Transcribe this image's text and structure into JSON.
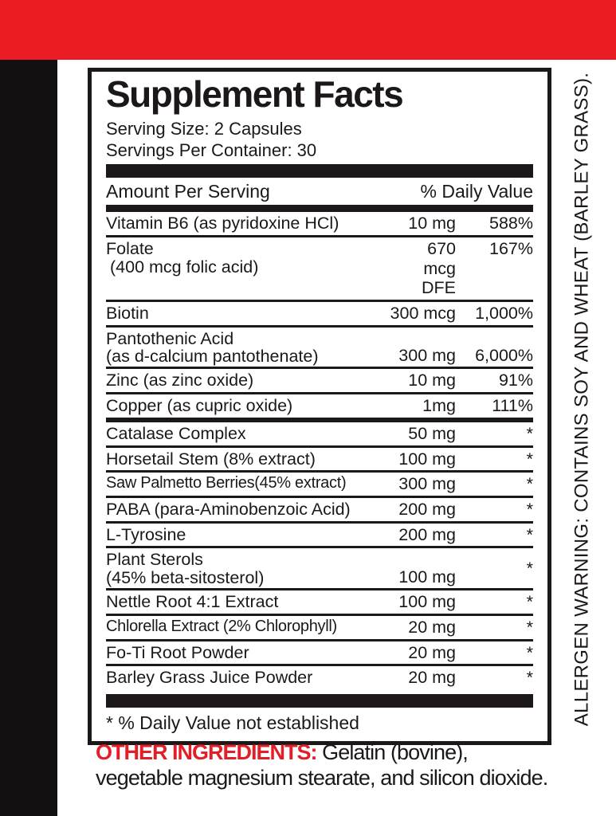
{
  "colors": {
    "accent_red": "#EB1C24",
    "ink": "#1C181A"
  },
  "supplement_facts": {
    "title": "Supplement Facts",
    "serving_size": "Serving Size: 2 Capsules",
    "servings_per_container": "Servings Per Container: 30",
    "column_headers": {
      "amount": "Amount Per Serving",
      "daily_value": "% Daily Value"
    },
    "rows": [
      {
        "name": "Vitamin B6 (as pyridoxine HCl)",
        "amount": "10 mg",
        "dv": "588%"
      },
      {
        "name": "Folate",
        "name2": "(400 mcg folic acid)",
        "amount_lines": [
          "670",
          "mcg",
          "DFE"
        ],
        "dv": "167%"
      },
      {
        "name": "Biotin",
        "amount": "300 mcg",
        "dv": "1,000%"
      },
      {
        "name": "Pantothenic Acid",
        "name2": "(as d-calcium pantothenate)",
        "amount": "300 mg",
        "dv": "6,000%"
      },
      {
        "name": "Zinc (as zinc oxide)",
        "amount": "10 mg",
        "dv": "91%"
      },
      {
        "name": "Copper (as cupric oxide)",
        "amount": "1mg",
        "dv": "111%"
      },
      {
        "name": "Catalase Complex",
        "amount": "50 mg",
        "dv": "*"
      },
      {
        "name": "Horsetail Stem (8% extract)",
        "amount": "100 mg",
        "dv": "*"
      },
      {
        "name": "Saw Palmetto Berries(45% extract)",
        "amount": "300 mg",
        "dv": "*"
      },
      {
        "name": "PABA (para-Aminobenzoic Acid)",
        "amount": "200 mg",
        "dv": "*"
      },
      {
        "name": "L-Tyrosine",
        "amount": "200 mg",
        "dv": "*"
      },
      {
        "name": "Plant Sterols",
        "name2": "(45% beta-sitosterol)",
        "amount": "100 mg",
        "dv": "*"
      },
      {
        "name": "Nettle Root 4:1 Extract",
        "amount": "100 mg",
        "dv": "*"
      },
      {
        "name": "Chlorella Extract (2% Chlorophyll)",
        "amount": "20 mg",
        "dv": "*"
      },
      {
        "name": "Fo-Ti Root Powder",
        "amount": "20 mg",
        "dv": "*"
      },
      {
        "name": "Barley Grass Juice Powder",
        "amount": "20 mg",
        "dv": "*"
      }
    ],
    "footnote": "* % Daily Value not established"
  },
  "other_ingredients": {
    "label": "OTHER INGREDIENTS:",
    "line1": " Gelatin (bovine),",
    "line2": "vegetable magnesium stearate, and silicon dioxide."
  },
  "allergen_warning": "ALLERGEN WARNING: CONTAINS SOY AND WHEAT (BARLEY GRASS)."
}
